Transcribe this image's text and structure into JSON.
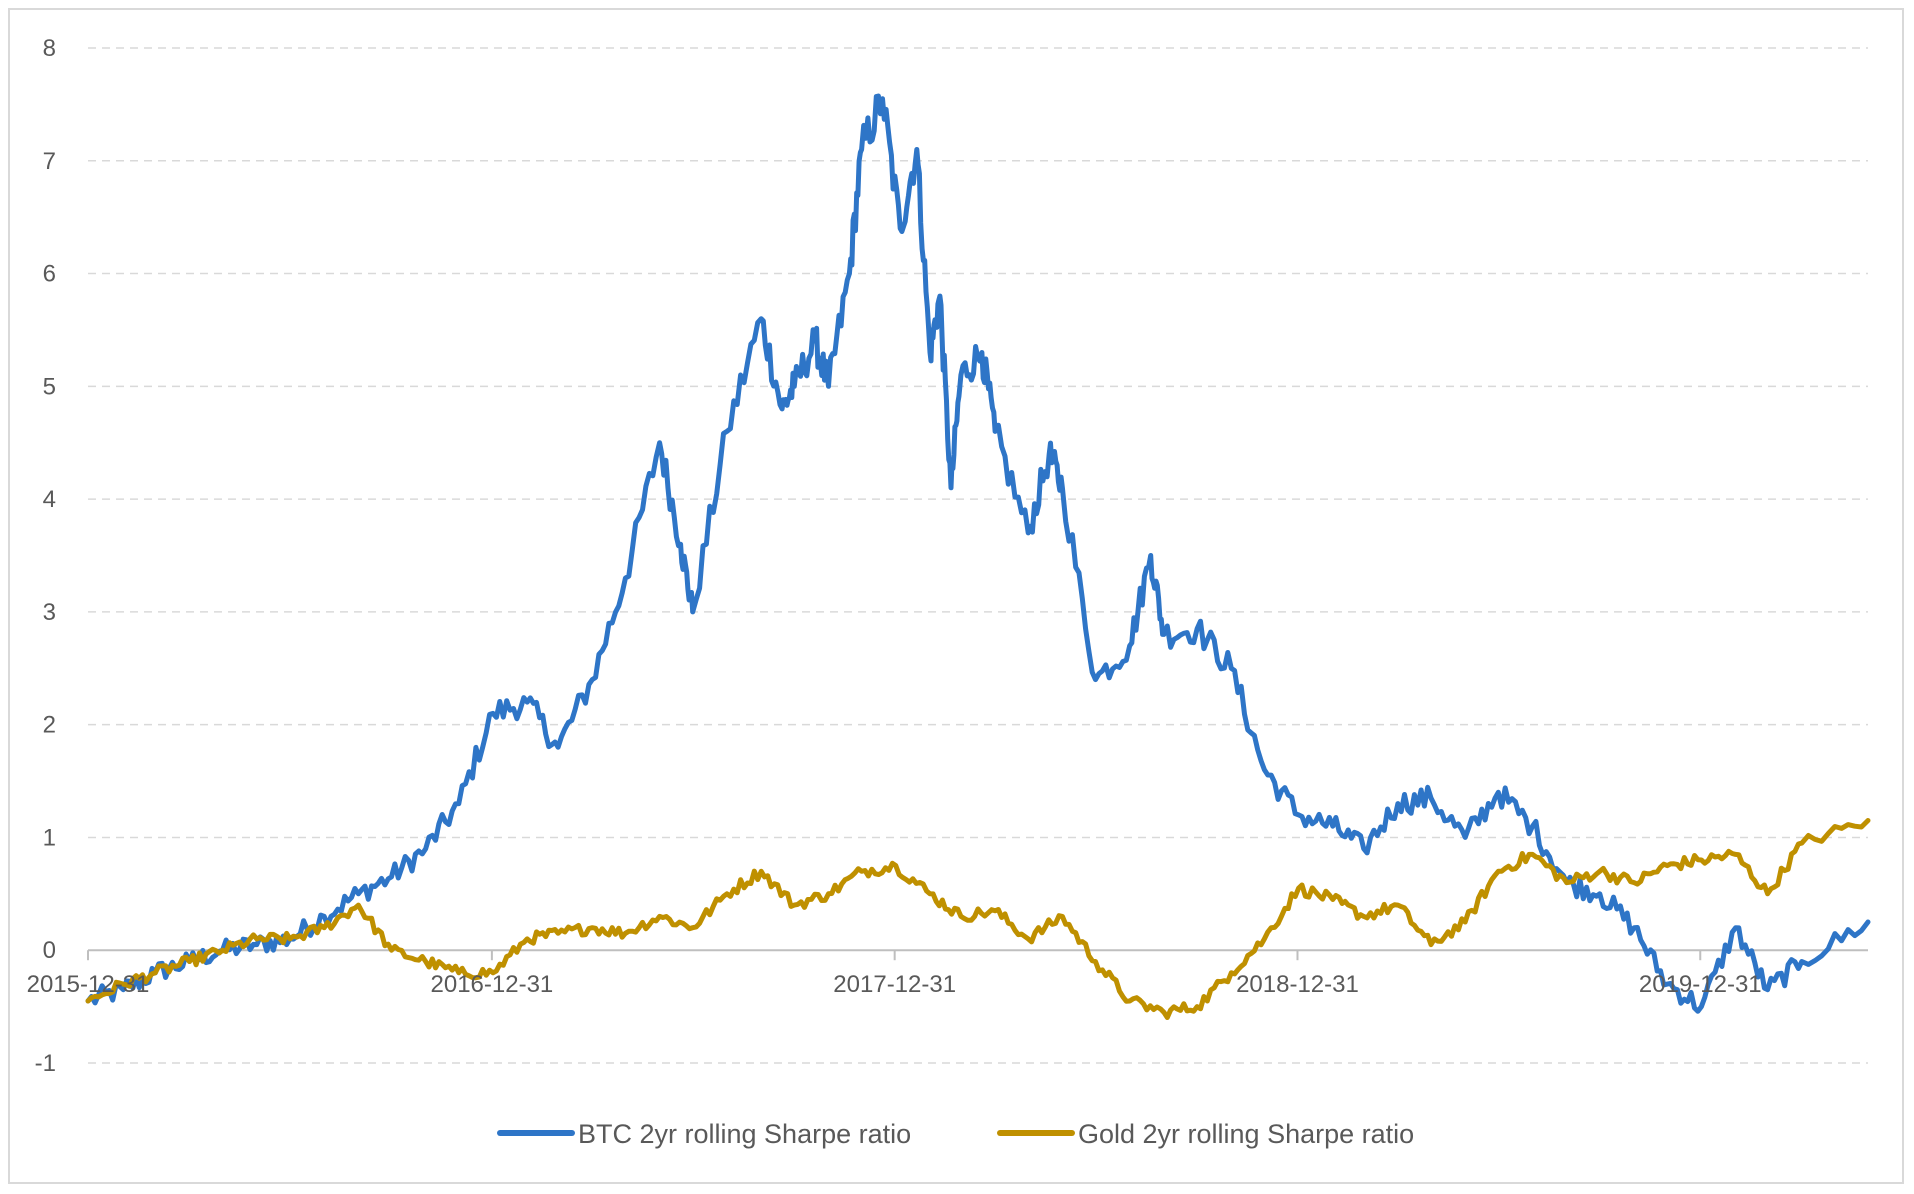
{
  "chart_data": {
    "type": "line",
    "title": "",
    "xlabel": "",
    "ylabel": "",
    "ylim": [
      -1,
      8
    ],
    "yticks": [
      -1,
      0,
      1,
      2,
      3,
      4,
      5,
      6,
      7,
      8
    ],
    "y_tick_labels": [
      "-1",
      "0",
      "1",
      "2",
      "3",
      "4",
      "5",
      "6",
      "7",
      "8"
    ],
    "xlim": [
      "2015-12-31",
      "2020-05-31"
    ],
    "x_tick_values": [
      "2015-12-31",
      "2016-12-31",
      "2017-12-31",
      "2018-12-31",
      "2019-12-31"
    ],
    "x_tick_labels": [
      "2015-12-31",
      "2016-12-31",
      "2017-12-31",
      "2018-12-31",
      "2019-12-31"
    ],
    "grid": "horizontal dashed",
    "legend_position": "bottom",
    "series": [
      {
        "name": "BTC 2yr rolling Sharpe ratio",
        "color": "#2e75c7",
        "points": [
          [
            "2015-12-31",
            -0.45
          ],
          [
            "2016-02-01",
            -0.35
          ],
          [
            "2016-03-01",
            -0.2
          ],
          [
            "2016-04-01",
            -0.1
          ],
          [
            "2016-05-01",
            0.0
          ],
          [
            "2016-06-01",
            0.05
          ],
          [
            "2016-07-01",
            0.1
          ],
          [
            "2016-08-01",
            0.3
          ],
          [
            "2016-09-01",
            0.5
          ],
          [
            "2016-10-01",
            0.65
          ],
          [
            "2016-11-01",
            0.9
          ],
          [
            "2016-12-01",
            1.3
          ],
          [
            "2017-01-01",
            2.1
          ],
          [
            "2017-02-01",
            2.2
          ],
          [
            "2017-03-01",
            1.8
          ],
          [
            "2017-04-01",
            2.4
          ],
          [
            "2017-05-01",
            3.3
          ],
          [
            "2017-06-01",
            4.5
          ],
          [
            "2017-06-20",
            3.6
          ],
          [
            "2017-07-01",
            3.0
          ],
          [
            "2017-08-01",
            4.6
          ],
          [
            "2017-09-01",
            5.6
          ],
          [
            "2017-09-20",
            4.8
          ],
          [
            "2017-10-01",
            5.0
          ],
          [
            "2017-10-20",
            5.4
          ],
          [
            "2017-11-01",
            5.0
          ],
          [
            "2017-11-20",
            6.0
          ],
          [
            "2017-12-01",
            7.1
          ],
          [
            "2017-12-20",
            7.55
          ],
          [
            "2018-01-05",
            6.4
          ],
          [
            "2018-01-20",
            7.1
          ],
          [
            "2018-02-01",
            5.3
          ],
          [
            "2018-02-10",
            5.8
          ],
          [
            "2018-02-20",
            4.1
          ],
          [
            "2018-03-01",
            5.1
          ],
          [
            "2018-03-20",
            5.3
          ],
          [
            "2018-04-01",
            4.6
          ],
          [
            "2018-05-01",
            3.7
          ],
          [
            "2018-05-20",
            4.4
          ],
          [
            "2018-06-01",
            4.1
          ],
          [
            "2018-07-01",
            2.4
          ],
          [
            "2018-08-01",
            2.7
          ],
          [
            "2018-08-20",
            3.5
          ],
          [
            "2018-09-01",
            2.8
          ],
          [
            "2018-10-01",
            2.85
          ],
          [
            "2018-11-01",
            2.5
          ],
          [
            "2018-12-01",
            1.6
          ],
          [
            "2019-01-01",
            1.2
          ],
          [
            "2019-02-01",
            1.1
          ],
          [
            "2019-03-01",
            0.9
          ],
          [
            "2019-04-01",
            1.3
          ],
          [
            "2019-05-01",
            1.35
          ],
          [
            "2019-06-01",
            1.0
          ],
          [
            "2019-07-01",
            1.4
          ],
          [
            "2019-08-01",
            1.1
          ],
          [
            "2019-09-01",
            0.6
          ],
          [
            "2019-10-01",
            0.5
          ],
          [
            "2019-11-01",
            0.2
          ],
          [
            "2019-12-01",
            -0.3
          ],
          [
            "2020-01-01",
            -0.5
          ],
          [
            "2020-02-01",
            0.2
          ],
          [
            "2020-03-01",
            -0.35
          ],
          [
            "2020-04-01",
            -0.1
          ],
          [
            "2020-05-31",
            0.25
          ]
        ]
      },
      {
        "name": "Gold 2yr rolling Sharpe ratio",
        "color": "#bf9000",
        "points": [
          [
            "2015-12-31",
            -0.45
          ],
          [
            "2016-02-01",
            -0.3
          ],
          [
            "2016-03-01",
            -0.2
          ],
          [
            "2016-04-01",
            -0.1
          ],
          [
            "2016-05-01",
            0.0
          ],
          [
            "2016-06-01",
            0.1
          ],
          [
            "2016-07-01",
            0.1
          ],
          [
            "2016-08-01",
            0.2
          ],
          [
            "2016-09-01",
            0.4
          ],
          [
            "2016-10-01",
            0.0
          ],
          [
            "2016-11-01",
            -0.1
          ],
          [
            "2016-12-01",
            -0.2
          ],
          [
            "2017-01-01",
            -0.2
          ],
          [
            "2017-02-01",
            0.1
          ],
          [
            "2017-03-01",
            0.15
          ],
          [
            "2017-04-01",
            0.2
          ],
          [
            "2017-05-01",
            0.15
          ],
          [
            "2017-06-01",
            0.3
          ],
          [
            "2017-07-01",
            0.2
          ],
          [
            "2017-08-01",
            0.5
          ],
          [
            "2017-09-01",
            0.7
          ],
          [
            "2017-10-01",
            0.4
          ],
          [
            "2017-11-01",
            0.5
          ],
          [
            "2017-12-01",
            0.7
          ],
          [
            "2018-01-01",
            0.75
          ],
          [
            "2018-02-01",
            0.5
          ],
          [
            "2018-03-01",
            0.3
          ],
          [
            "2018-04-01",
            0.35
          ],
          [
            "2018-05-01",
            0.1
          ],
          [
            "2018-06-01",
            0.3
          ],
          [
            "2018-07-01",
            -0.1
          ],
          [
            "2018-08-01",
            -0.45
          ],
          [
            "2018-09-01",
            -0.55
          ],
          [
            "2018-10-01",
            -0.5
          ],
          [
            "2018-11-01",
            -0.2
          ],
          [
            "2018-12-01",
            0.1
          ],
          [
            "2019-01-01",
            0.55
          ],
          [
            "2019-02-01",
            0.45
          ],
          [
            "2019-03-01",
            0.3
          ],
          [
            "2019-04-01",
            0.4
          ],
          [
            "2019-05-01",
            0.05
          ],
          [
            "2019-06-01",
            0.25
          ],
          [
            "2019-07-01",
            0.7
          ],
          [
            "2019-08-01",
            0.85
          ],
          [
            "2019-09-01",
            0.6
          ],
          [
            "2019-10-01",
            0.7
          ],
          [
            "2019-11-01",
            0.6
          ],
          [
            "2019-12-01",
            0.75
          ],
          [
            "2020-01-01",
            0.8
          ],
          [
            "2020-02-01",
            0.85
          ],
          [
            "2020-03-01",
            0.5
          ],
          [
            "2020-04-01",
            0.95
          ],
          [
            "2020-05-31",
            1.15
          ]
        ]
      }
    ]
  }
}
